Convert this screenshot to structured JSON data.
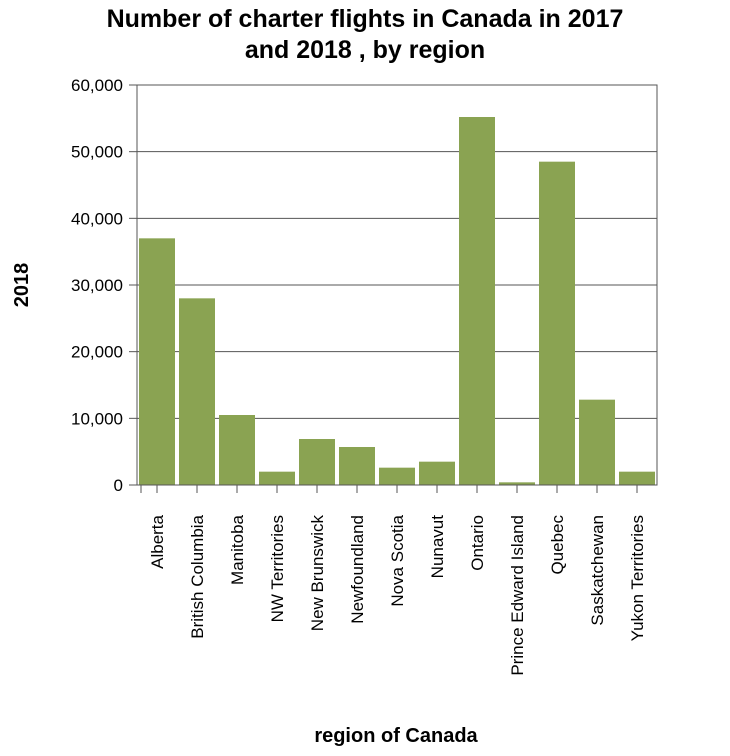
{
  "chart_data": {
    "type": "bar",
    "title_lines": [
      "Number of charter flights in Canada in 2017",
      "and 2018 , by region"
    ],
    "xlabel": "region of Canada",
    "ylabel": "2018",
    "ylim": [
      0,
      60000
    ],
    "yticks": [
      0,
      10000,
      20000,
      30000,
      40000,
      50000,
      60000
    ],
    "ytick_labels": [
      "0",
      "10,000",
      "20,000",
      "30,000",
      "40,000",
      "50,000",
      "60,000"
    ],
    "grid": true,
    "bar_color": "#8aa352",
    "categories": [
      "Alberta",
      "British Columbia",
      "Manitoba",
      "NW Territories",
      "New Brunswick",
      "Newfoundland",
      "Nova Scotia",
      "Nunavut",
      "Ontario",
      "Prince Edward Island",
      "Quebec",
      "Saskatchewan",
      "Yukon Territories"
    ],
    "values": [
      37000,
      28000,
      10500,
      2000,
      6900,
      5700,
      2600,
      3500,
      55200,
      400,
      48500,
      12800,
      2000
    ]
  }
}
